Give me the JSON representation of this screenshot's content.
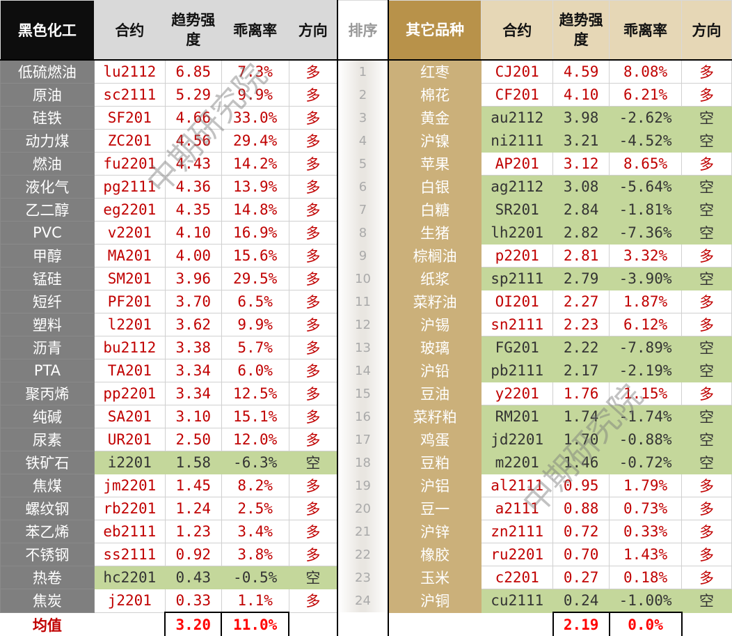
{
  "headers": {
    "left_group": "黑色化工",
    "contract": "合约",
    "strength": "趋势强度",
    "divergence": "乖离率",
    "direction": "方向",
    "rank": "排序",
    "right_group": "其它品种"
  },
  "colors": {
    "long": "#c00000",
    "short_bg": "#c4d79b",
    "left_name_bg": "#7f7f7f",
    "right_name_bg": "#cbb07a",
    "header_gold": "#b8924a"
  },
  "left": [
    [
      "低硫燃油",
      "lu2112",
      "6.85",
      "7.3%",
      "多"
    ],
    [
      "原油",
      "sc2111",
      "5.29",
      "9.9%",
      "多"
    ],
    [
      "硅铁",
      "SF201",
      "4.66",
      "33.0%",
      "多"
    ],
    [
      "动力煤",
      "ZC201",
      "4.56",
      "29.4%",
      "多"
    ],
    [
      "燃油",
      "fu2201",
      "4.43",
      "14.2%",
      "多"
    ],
    [
      "液化气",
      "pg2111",
      "4.36",
      "13.9%",
      "多"
    ],
    [
      "乙二醇",
      "eg2201",
      "4.35",
      "14.8%",
      "多"
    ],
    [
      "PVC",
      "v2201",
      "4.10",
      "16.9%",
      "多"
    ],
    [
      "甲醇",
      "MA201",
      "4.00",
      "15.6%",
      "多"
    ],
    [
      "锰硅",
      "SM201",
      "3.96",
      "29.5%",
      "多"
    ],
    [
      "短纤",
      "PF201",
      "3.70",
      "6.5%",
      "多"
    ],
    [
      "塑料",
      "l2201",
      "3.62",
      "9.9%",
      "多"
    ],
    [
      "沥青",
      "bu2112",
      "3.38",
      "5.7%",
      "多"
    ],
    [
      "PTA",
      "TA201",
      "3.34",
      "6.0%",
      "多"
    ],
    [
      "聚丙烯",
      "pp2201",
      "3.34",
      "12.5%",
      "多"
    ],
    [
      "纯碱",
      "SA201",
      "3.10",
      "15.1%",
      "多"
    ],
    [
      "尿素",
      "UR201",
      "2.50",
      "12.0%",
      "多"
    ],
    [
      "铁矿石",
      "i2201",
      "1.58",
      "-6.3%",
      "空"
    ],
    [
      "焦煤",
      "jm2201",
      "1.45",
      "8.2%",
      "多"
    ],
    [
      "螺纹钢",
      "rb2201",
      "1.24",
      "2.5%",
      "多"
    ],
    [
      "苯乙烯",
      "eb2111",
      "1.23",
      "3.4%",
      "多"
    ],
    [
      "不锈钢",
      "ss2111",
      "0.92",
      "3.8%",
      "多"
    ],
    [
      "热卷",
      "hc2201",
      "0.43",
      "-0.5%",
      "空"
    ],
    [
      "焦炭",
      "j2201",
      "0.33",
      "1.1%",
      "多"
    ]
  ],
  "right": [
    [
      "红枣",
      "CJ201",
      "4.59",
      "8.08%",
      "多"
    ],
    [
      "棉花",
      "CF201",
      "4.10",
      "6.21%",
      "多"
    ],
    [
      "黄金",
      "au2112",
      "3.98",
      "-2.62%",
      "空"
    ],
    [
      "沪镍",
      "ni2111",
      "3.21",
      "-4.52%",
      "空"
    ],
    [
      "苹果",
      "AP201",
      "3.12",
      "8.65%",
      "多"
    ],
    [
      "白银",
      "ag2112",
      "3.08",
      "-5.64%",
      "空"
    ],
    [
      "白糖",
      "SR201",
      "2.84",
      "-1.81%",
      "空"
    ],
    [
      "生猪",
      "lh2201",
      "2.82",
      "-7.36%",
      "空"
    ],
    [
      "棕榈油",
      "p2201",
      "2.81",
      "3.32%",
      "多"
    ],
    [
      "纸浆",
      "sp2111",
      "2.79",
      "-3.90%",
      "空"
    ],
    [
      "菜籽油",
      "OI201",
      "2.27",
      "1.87%",
      "多"
    ],
    [
      "沪锡",
      "sn2111",
      "2.23",
      "6.12%",
      "多"
    ],
    [
      "玻璃",
      "FG201",
      "2.22",
      "-7.89%",
      "空"
    ],
    [
      "沪铅",
      "pb2111",
      "2.17",
      "-2.19%",
      "空"
    ],
    [
      "豆油",
      "y2201",
      "1.76",
      "1.15%",
      "多"
    ],
    [
      "菜籽粕",
      "RM201",
      "1.74",
      "-1.74%",
      "空"
    ],
    [
      "鸡蛋",
      "jd2201",
      "1.70",
      "-0.88%",
      "空"
    ],
    [
      "豆粕",
      "m2201",
      "1.46",
      "-0.72%",
      "空"
    ],
    [
      "沪铝",
      "al2111",
      "0.95",
      "1.79%",
      "多"
    ],
    [
      "豆一",
      "a2111",
      "0.88",
      "0.73%",
      "多"
    ],
    [
      "沪锌",
      "zn2111",
      "0.72",
      "0.33%",
      "多"
    ],
    [
      "橡胶",
      "ru2201",
      "0.70",
      "1.43%",
      "多"
    ],
    [
      "玉米",
      "c2201",
      "0.27",
      "0.18%",
      "多"
    ],
    [
      "沪铜",
      "cu2111",
      "0.24",
      "-1.00%",
      "空"
    ]
  ],
  "ranks": [
    "1",
    "2",
    "3",
    "4",
    "5",
    "6",
    "7",
    "8",
    "9",
    "10",
    "11",
    "12",
    "13",
    "14",
    "15",
    "16",
    "17",
    "18",
    "19",
    "20",
    "21",
    "22",
    "23",
    "24"
  ],
  "average": {
    "label": "均值",
    "left_strength": "3.20",
    "left_divergence": "11.0%",
    "right_strength": "2.19",
    "right_divergence": "0.0%"
  },
  "watermark": "中期研究院"
}
